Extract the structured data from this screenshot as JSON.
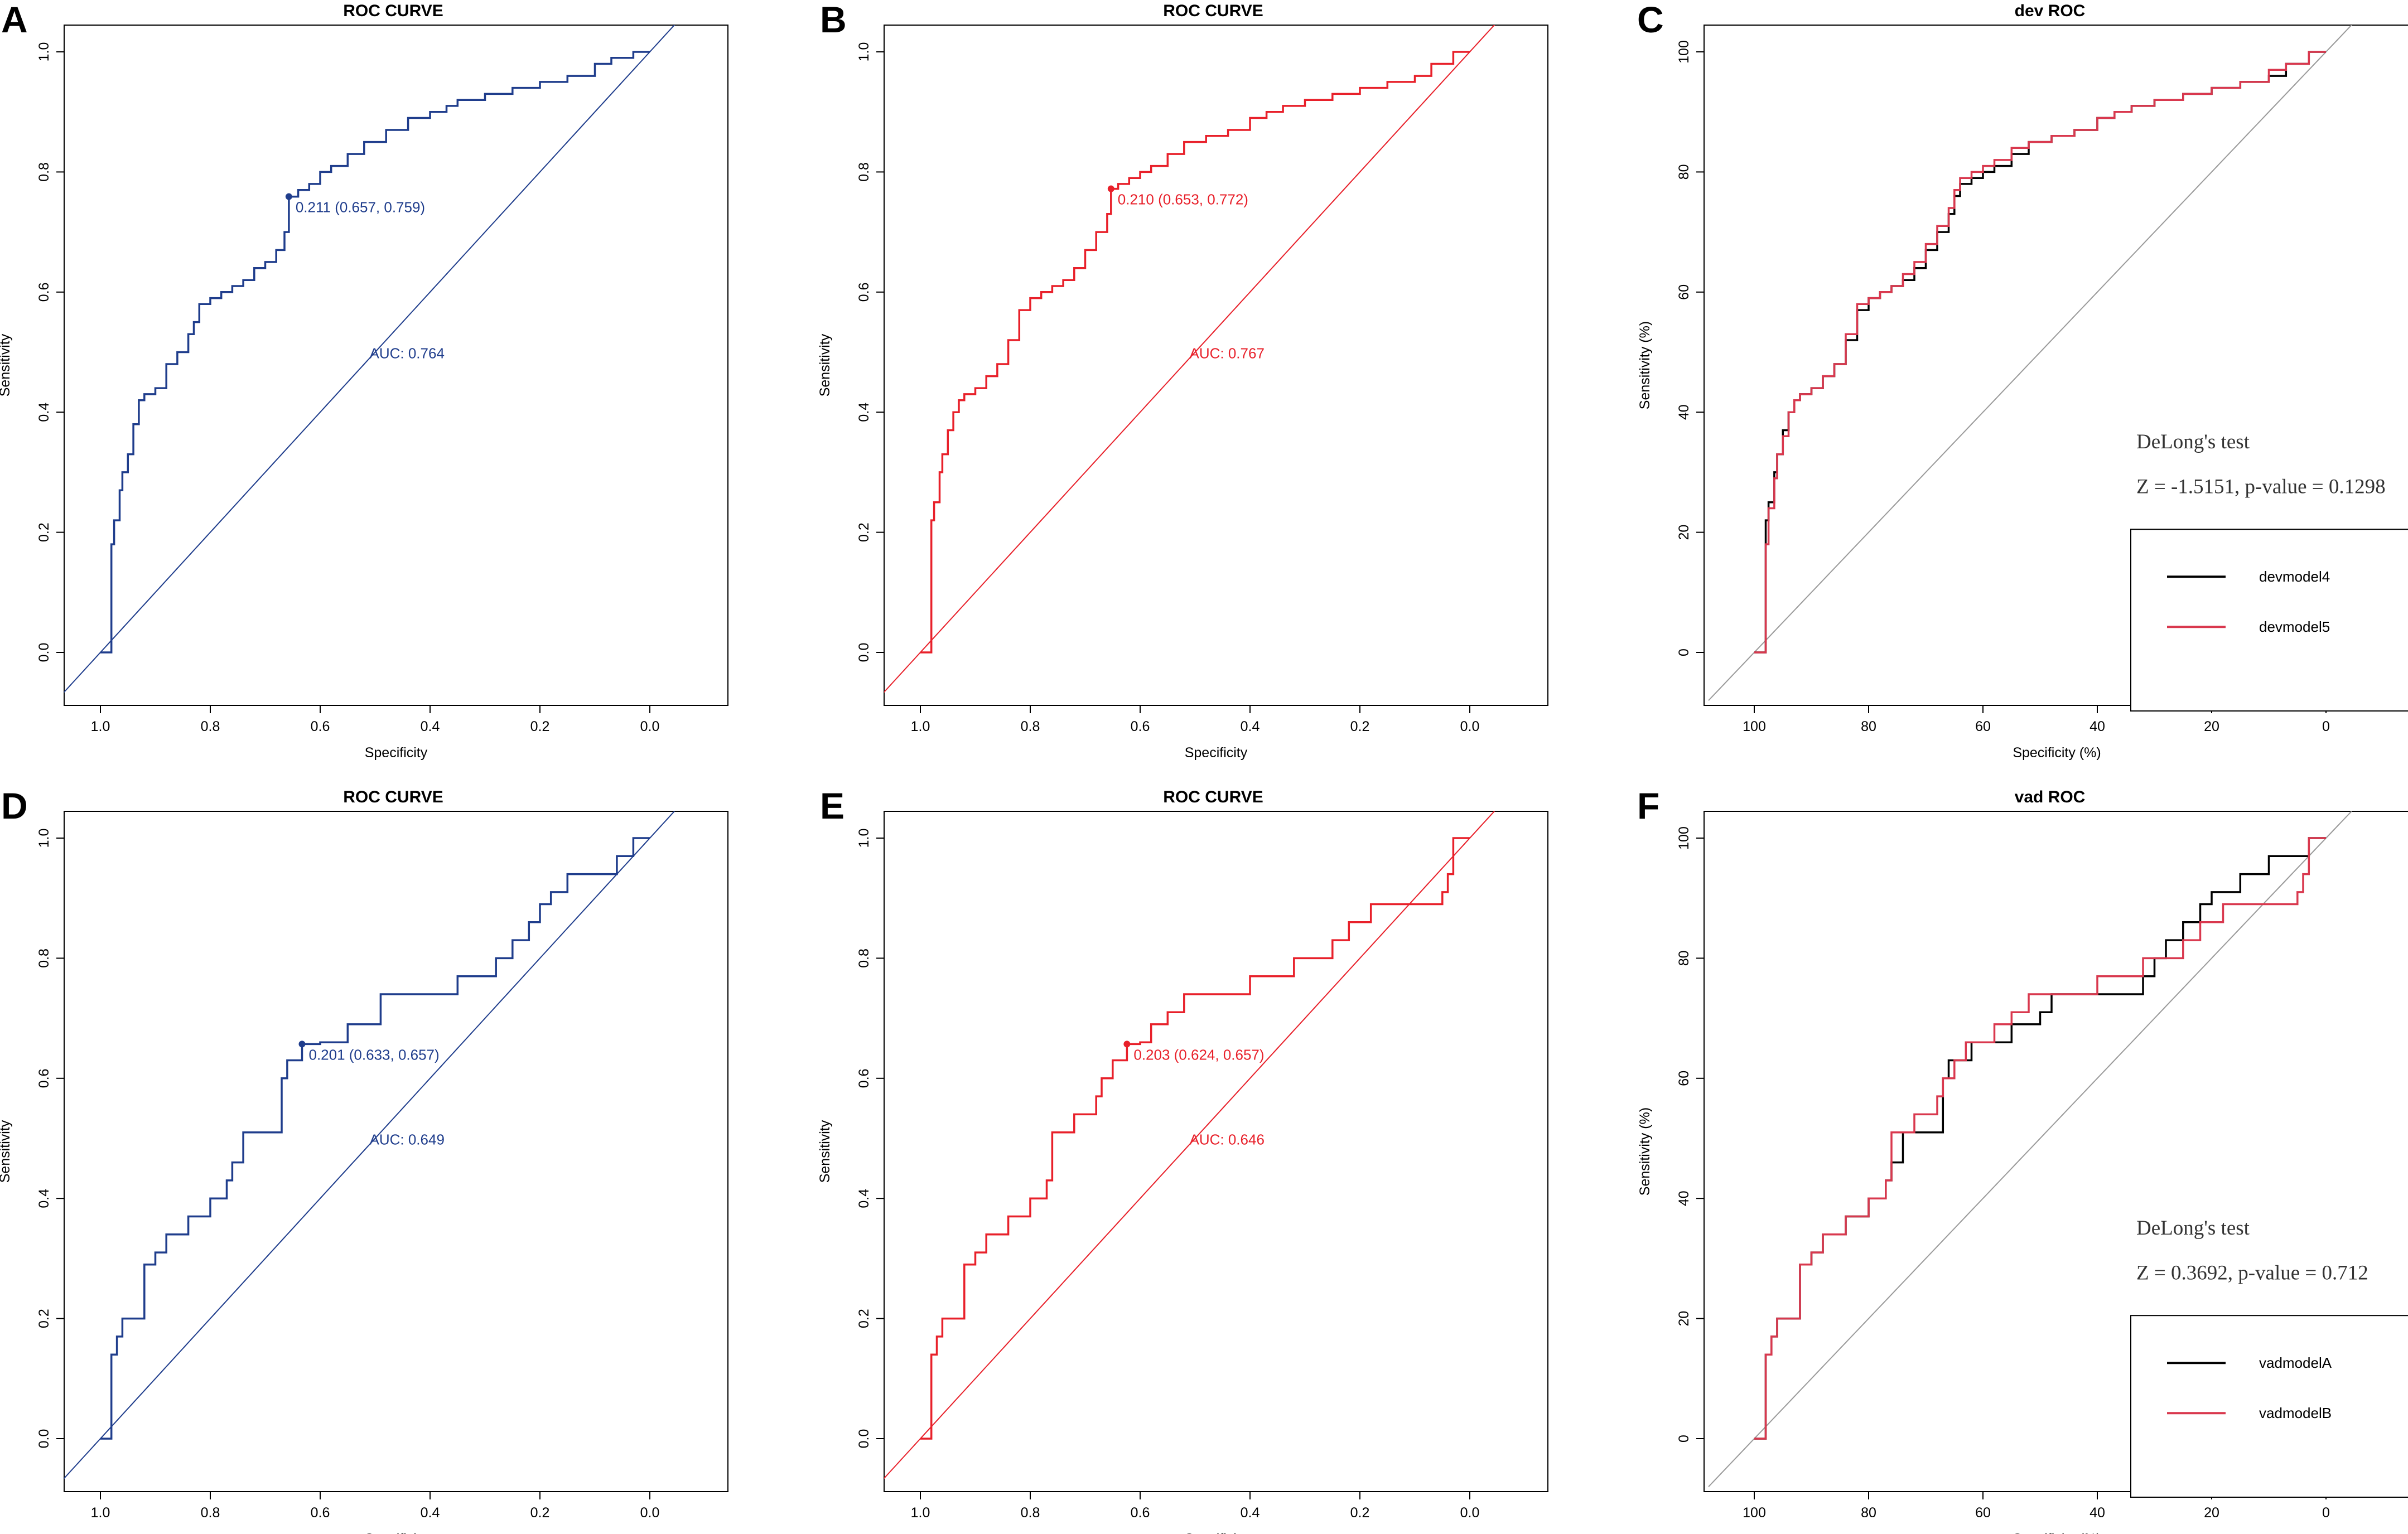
{
  "figure": {
    "panel_letters": [
      "A",
      "B",
      "C",
      "D",
      "E",
      "F"
    ]
  },
  "colors": {
    "blue": "#1f3d8c",
    "red": "#e8202a",
    "black": "#000000",
    "pink": "#d9384e",
    "grey": "#9a9a9a"
  },
  "chart_data": [
    {
      "panel": "A",
      "type": "line",
      "title": "ROC CURVE",
      "xlabel": "Specificity",
      "ylabel": "Sensitivity",
      "xlim": [
        1.0,
        0.0
      ],
      "ylim": [
        0.0,
        1.0
      ],
      "x_ticks": [
        "1.0",
        "0.8",
        "0.6",
        "0.4",
        "0.2",
        "0.0"
      ],
      "y_ticks": [
        "0.0",
        "0.2",
        "0.4",
        "0.6",
        "0.8",
        "1.0"
      ],
      "color": "#1f3d8c",
      "series": [
        {
          "name": "ROC",
          "x": [
            1.0,
            0.98,
            0.98,
            0.975,
            0.965,
            0.96,
            0.95,
            0.94,
            0.93,
            0.93,
            0.92,
            0.9,
            0.88,
            0.88,
            0.86,
            0.84,
            0.83,
            0.82,
            0.82,
            0.8,
            0.78,
            0.76,
            0.74,
            0.72,
            0.7,
            0.68,
            0.665,
            0.657,
            0.64,
            0.62,
            0.6,
            0.58,
            0.55,
            0.52,
            0.48,
            0.44,
            0.4,
            0.37,
            0.35,
            0.3,
            0.25,
            0.2,
            0.15,
            0.1,
            0.07,
            0.03,
            0.0
          ],
          "y": [
            0.0,
            0.02,
            0.18,
            0.22,
            0.27,
            0.3,
            0.33,
            0.38,
            0.4,
            0.42,
            0.43,
            0.44,
            0.46,
            0.48,
            0.5,
            0.53,
            0.55,
            0.57,
            0.58,
            0.59,
            0.6,
            0.61,
            0.62,
            0.64,
            0.65,
            0.67,
            0.7,
            0.759,
            0.77,
            0.78,
            0.8,
            0.81,
            0.83,
            0.85,
            0.87,
            0.89,
            0.9,
            0.91,
            0.92,
            0.93,
            0.94,
            0.95,
            0.96,
            0.98,
            0.99,
            1.0,
            1.0
          ]
        }
      ],
      "diagonal": true,
      "cutoff_point": {
        "x": 0.657,
        "y": 0.759,
        "label": "0.211 (0.657, 0.759)"
      },
      "auc_label": "AUC: 0.764"
    },
    {
      "panel": "B",
      "type": "line",
      "title": "ROC CURVE",
      "xlabel": "Specificity",
      "ylabel": "Sensitivity",
      "xlim": [
        1.0,
        0.0
      ],
      "ylim": [
        0.0,
        1.0
      ],
      "x_ticks": [
        "1.0",
        "0.8",
        "0.6",
        "0.4",
        "0.2",
        "0.0"
      ],
      "y_ticks": [
        "0.0",
        "0.2",
        "0.4",
        "0.6",
        "0.8",
        "1.0"
      ],
      "color": "#e8202a",
      "series": [
        {
          "name": "ROC",
          "x": [
            1.0,
            0.98,
            0.98,
            0.975,
            0.965,
            0.96,
            0.95,
            0.94,
            0.93,
            0.92,
            0.9,
            0.88,
            0.86,
            0.84,
            0.82,
            0.8,
            0.78,
            0.76,
            0.74,
            0.72,
            0.7,
            0.68,
            0.66,
            0.653,
            0.64,
            0.62,
            0.6,
            0.58,
            0.55,
            0.52,
            0.48,
            0.44,
            0.4,
            0.37,
            0.34,
            0.3,
            0.25,
            0.2,
            0.15,
            0.1,
            0.07,
            0.03,
            0.0
          ],
          "y": [
            0.0,
            0.02,
            0.22,
            0.25,
            0.3,
            0.33,
            0.37,
            0.4,
            0.42,
            0.43,
            0.44,
            0.46,
            0.48,
            0.52,
            0.57,
            0.59,
            0.6,
            0.61,
            0.62,
            0.64,
            0.67,
            0.7,
            0.73,
            0.772,
            0.78,
            0.79,
            0.8,
            0.81,
            0.83,
            0.85,
            0.86,
            0.87,
            0.89,
            0.9,
            0.91,
            0.92,
            0.93,
            0.94,
            0.95,
            0.96,
            0.98,
            1.0,
            1.0
          ]
        }
      ],
      "diagonal": true,
      "cutoff_point": {
        "x": 0.653,
        "y": 0.772,
        "label": "0.210 (0.653, 0.772)"
      },
      "auc_label": "AUC: 0.767"
    },
    {
      "panel": "C",
      "type": "line",
      "title": "dev ROC",
      "xlabel": "Specificity (%)",
      "ylabel": "Sensitivity (%)",
      "xlim": [
        100,
        0
      ],
      "ylim": [
        0,
        100
      ],
      "x_ticks": [
        "100",
        "80",
        "60",
        "40",
        "20",
        "0"
      ],
      "y_ticks": [
        "0",
        "20",
        "40",
        "60",
        "80",
        "100"
      ],
      "series": [
        {
          "name": "devmodel4",
          "color": "#000000",
          "x": [
            100,
            98,
            98,
            97.5,
            96.5,
            96,
            95,
            94,
            93,
            92,
            90,
            88,
            86,
            84,
            82,
            80,
            78,
            76,
            74,
            72,
            70,
            68,
            66,
            65,
            64,
            62,
            60,
            58,
            55,
            52,
            48,
            44,
            40,
            37,
            34,
            30,
            25,
            20,
            15,
            10,
            7,
            3,
            0
          ],
          "y": [
            0,
            2,
            22,
            25,
            30,
            33,
            37,
            40,
            42,
            43,
            44,
            46,
            48,
            52,
            57,
            59,
            60,
            61,
            62,
            64,
            67,
            70,
            73,
            76,
            78,
            79,
            80,
            81,
            83,
            85,
            86,
            87,
            89,
            90,
            91,
            92,
            93,
            94,
            95,
            96,
            98,
            100,
            100
          ]
        },
        {
          "name": "devmodel5",
          "color": "#d9384e",
          "x": [
            100,
            98,
            98,
            97.5,
            96.5,
            96,
            95,
            94,
            93,
            92,
            90,
            88,
            86,
            84,
            82,
            80,
            78,
            76,
            74,
            72,
            70,
            68,
            66,
            65,
            64,
            62,
            60,
            58,
            55,
            52,
            48,
            44,
            40,
            37,
            34,
            30,
            25,
            20,
            15,
            10,
            7,
            3,
            0
          ],
          "y": [
            0,
            2,
            18,
            24,
            29,
            33,
            36,
            40,
            42,
            43,
            44,
            46,
            48,
            53,
            58,
            59,
            60,
            61,
            63,
            65,
            68,
            71,
            74,
            77,
            79,
            80,
            81,
            82,
            84,
            85,
            86,
            87,
            89,
            90,
            91,
            92,
            93,
            94,
            95,
            97,
            98,
            100,
            100
          ]
        }
      ],
      "diagonal": true,
      "annotation_lines": [
        "DeLong's test",
        "Z = -1.5151, p-value = 0.1298"
      ],
      "legend": [
        "devmodel4",
        "devmodel5"
      ]
    },
    {
      "panel": "D",
      "type": "line",
      "title": "ROC CURVE",
      "xlabel": "Specificity",
      "ylabel": "Sensitivity",
      "xlim": [
        1.0,
        0.0
      ],
      "ylim": [
        0.0,
        1.0
      ],
      "x_ticks": [
        "1.0",
        "0.8",
        "0.6",
        "0.4",
        "0.2",
        "0.0"
      ],
      "y_ticks": [
        "0.0",
        "0.2",
        "0.4",
        "0.6",
        "0.8",
        "1.0"
      ],
      "color": "#1f3d8c",
      "series": [
        {
          "name": "ROC",
          "x": [
            1.0,
            0.98,
            0.98,
            0.97,
            0.96,
            0.94,
            0.92,
            0.9,
            0.88,
            0.86,
            0.84,
            0.82,
            0.8,
            0.78,
            0.77,
            0.76,
            0.74,
            0.72,
            0.7,
            0.68,
            0.67,
            0.66,
            0.65,
            0.633,
            0.6,
            0.58,
            0.55,
            0.52,
            0.49,
            0.45,
            0.4,
            0.35,
            0.32,
            0.28,
            0.25,
            0.22,
            0.2,
            0.18,
            0.15,
            0.1,
            0.06,
            0.03,
            0.0
          ],
          "y": [
            0.0,
            0.0,
            0.14,
            0.17,
            0.2,
            0.2,
            0.29,
            0.31,
            0.34,
            0.34,
            0.37,
            0.37,
            0.4,
            0.4,
            0.43,
            0.46,
            0.51,
            0.51,
            0.51,
            0.51,
            0.6,
            0.63,
            0.63,
            0.657,
            0.66,
            0.66,
            0.69,
            0.69,
            0.74,
            0.74,
            0.74,
            0.77,
            0.77,
            0.8,
            0.83,
            0.86,
            0.89,
            0.91,
            0.94,
            0.94,
            0.97,
            1.0,
            1.0
          ]
        }
      ],
      "diagonal": true,
      "cutoff_point": {
        "x": 0.633,
        "y": 0.657,
        "label": "0.201 (0.633, 0.657)"
      },
      "auc_label": "AUC: 0.649"
    },
    {
      "panel": "E",
      "type": "line",
      "title": "ROC CURVE",
      "xlabel": "Specificity",
      "ylabel": "Sensitivity",
      "xlim": [
        1.0,
        0.0
      ],
      "ylim": [
        0.0,
        1.0
      ],
      "x_ticks": [
        "1.0",
        "0.8",
        "0.6",
        "0.4",
        "0.2",
        "0.0"
      ],
      "y_ticks": [
        "0.0",
        "0.2",
        "0.4",
        "0.6",
        "0.8",
        "1.0"
      ],
      "color": "#e8202a",
      "series": [
        {
          "name": "ROC",
          "x": [
            1.0,
            0.98,
            0.98,
            0.97,
            0.96,
            0.94,
            0.92,
            0.9,
            0.88,
            0.86,
            0.84,
            0.82,
            0.8,
            0.78,
            0.77,
            0.76,
            0.74,
            0.72,
            0.7,
            0.68,
            0.67,
            0.66,
            0.65,
            0.624,
            0.6,
            0.58,
            0.55,
            0.52,
            0.49,
            0.45,
            0.4,
            0.35,
            0.32,
            0.28,
            0.25,
            0.22,
            0.2,
            0.18,
            0.15,
            0.11,
            0.05,
            0.04,
            0.03,
            0.0
          ],
          "y": [
            0.0,
            0.0,
            0.14,
            0.17,
            0.2,
            0.2,
            0.29,
            0.31,
            0.34,
            0.34,
            0.37,
            0.37,
            0.4,
            0.4,
            0.43,
            0.51,
            0.51,
            0.54,
            0.54,
            0.57,
            0.6,
            0.6,
            0.63,
            0.657,
            0.66,
            0.69,
            0.71,
            0.74,
            0.74,
            0.74,
            0.77,
            0.77,
            0.8,
            0.8,
            0.83,
            0.86,
            0.86,
            0.89,
            0.89,
            0.89,
            0.91,
            0.94,
            1.0,
            1.0
          ]
        }
      ],
      "diagonal": true,
      "cutoff_point": {
        "x": 0.624,
        "y": 0.657,
        "label": "0.203 (0.624, 0.657)"
      },
      "auc_label": "AUC: 0.646"
    },
    {
      "panel": "F",
      "type": "line",
      "title": "vad ROC",
      "xlabel": "Specificity (%)",
      "ylabel": "Sensitivity (%)",
      "xlim": [
        100,
        0
      ],
      "ylim": [
        0,
        100
      ],
      "x_ticks": [
        "100",
        "80",
        "60",
        "40",
        "20",
        "0"
      ],
      "y_ticks": [
        "0",
        "20",
        "40",
        "60",
        "80",
        "100"
      ],
      "series": [
        {
          "name": "vadmodelA",
          "color": "#000000",
          "x": [
            100,
            98,
            98,
            97,
            96,
            94,
            92,
            90,
            88,
            86,
            84,
            82,
            80,
            78,
            77,
            76,
            74,
            72,
            70,
            68,
            67,
            66,
            64,
            62,
            60,
            58,
            55,
            52,
            50,
            48,
            45,
            40,
            35,
            32,
            30,
            28,
            25,
            22,
            20,
            18,
            15,
            10,
            5,
            3,
            0
          ],
          "y": [
            0,
            0,
            14,
            17,
            20,
            20,
            29,
            31,
            34,
            34,
            37,
            37,
            40,
            40,
            43,
            46,
            51,
            51,
            51,
            51,
            60,
            63,
            63,
            66,
            66,
            66,
            69,
            69,
            71,
            74,
            74,
            74,
            74,
            77,
            80,
            83,
            86,
            89,
            91,
            91,
            94,
            97,
            97,
            100,
            100
          ]
        },
        {
          "name": "vadmodelB",
          "color": "#d9384e",
          "x": [
            100,
            98,
            98,
            97,
            96,
            94,
            92,
            90,
            88,
            86,
            84,
            82,
            80,
            78,
            77,
            76,
            74,
            72,
            70,
            68,
            67,
            66,
            65,
            63,
            60,
            58,
            55,
            52,
            49,
            45,
            40,
            35,
            32,
            28,
            25,
            22,
            20,
            18,
            15,
            11,
            5,
            4,
            3,
            0
          ],
          "y": [
            0,
            0,
            14,
            17,
            20,
            20,
            29,
            31,
            34,
            34,
            37,
            37,
            40,
            40,
            43,
            51,
            51,
            54,
            54,
            57,
            60,
            60,
            63,
            66,
            66,
            69,
            71,
            74,
            74,
            74,
            77,
            77,
            80,
            80,
            83,
            86,
            86,
            89,
            89,
            89,
            91,
            94,
            100,
            100
          ]
        }
      ],
      "diagonal": true,
      "annotation_lines": [
        "DeLong's test",
        "Z = 0.3692, p-value = 0.712"
      ],
      "legend": [
        "vadmodelA",
        "vadmodelB"
      ]
    }
  ]
}
